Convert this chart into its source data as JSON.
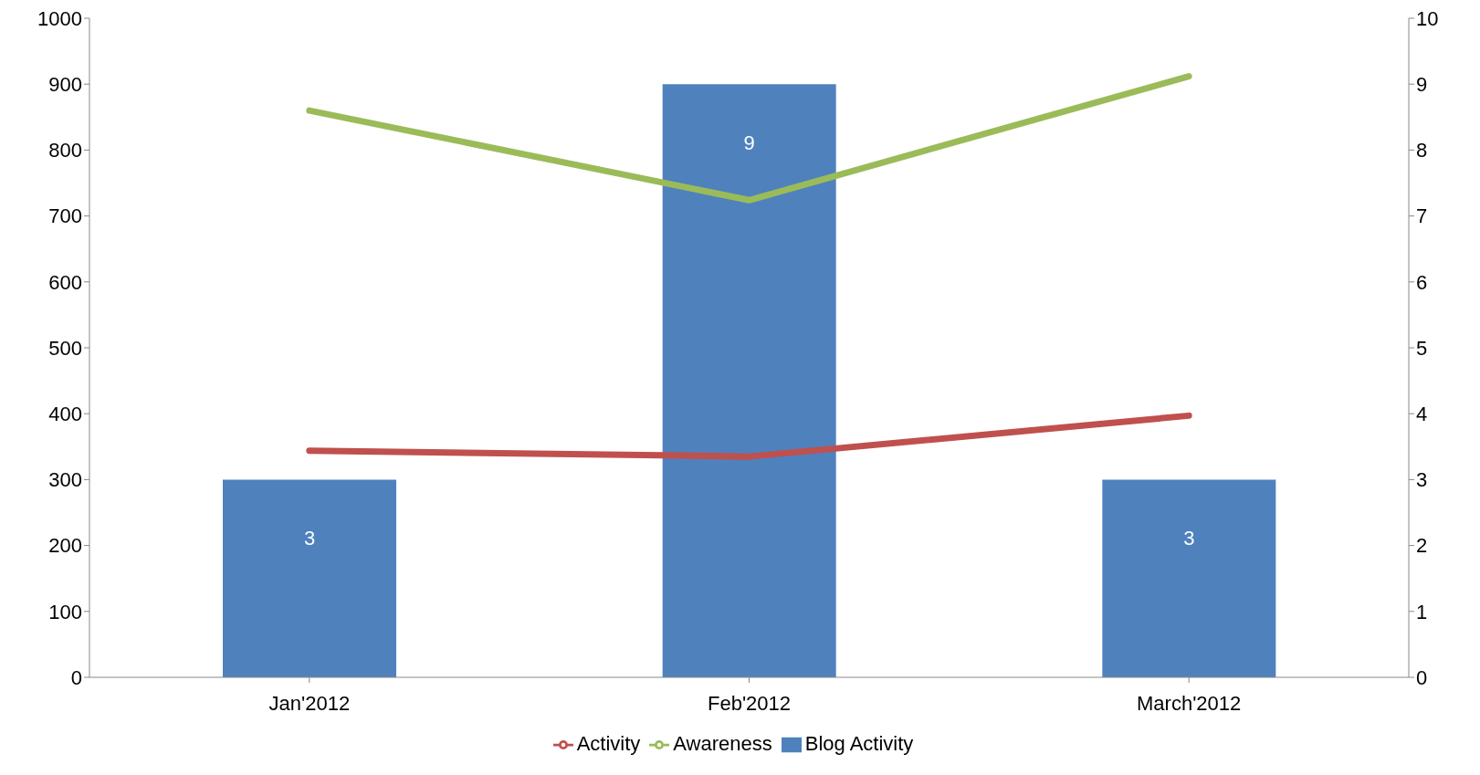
{
  "chart_data": {
    "type": "bar",
    "categories": [
      "Jan'2012",
      "Feb'2012",
      "March'2012"
    ],
    "series": [
      {
        "name": "Blog Activity",
        "axis": "y2",
        "color": "#4f81bd",
        "values": [
          3,
          9,
          3
        ],
        "value_labels": [
          "3",
          "9",
          "3"
        ]
      },
      {
        "name": "Activity",
        "type": "line",
        "color": "#c0504d",
        "values": [
          344,
          335,
          397
        ]
      },
      {
        "name": "Awareness",
        "type": "line",
        "color": "#9bbb59",
        "values": [
          860,
          724,
          912
        ]
      }
    ],
    "ylim": [
      0,
      1000
    ],
    "yticks": [
      0,
      100,
      200,
      300,
      400,
      500,
      600,
      700,
      800,
      900,
      1000
    ],
    "y2lim": [
      0,
      10
    ],
    "y2ticks": [
      0,
      1,
      2,
      3,
      4,
      5,
      6,
      7,
      8,
      9,
      10
    ],
    "grid": false,
    "legend": "bottom",
    "marker": "none",
    "line_style": "solid"
  }
}
